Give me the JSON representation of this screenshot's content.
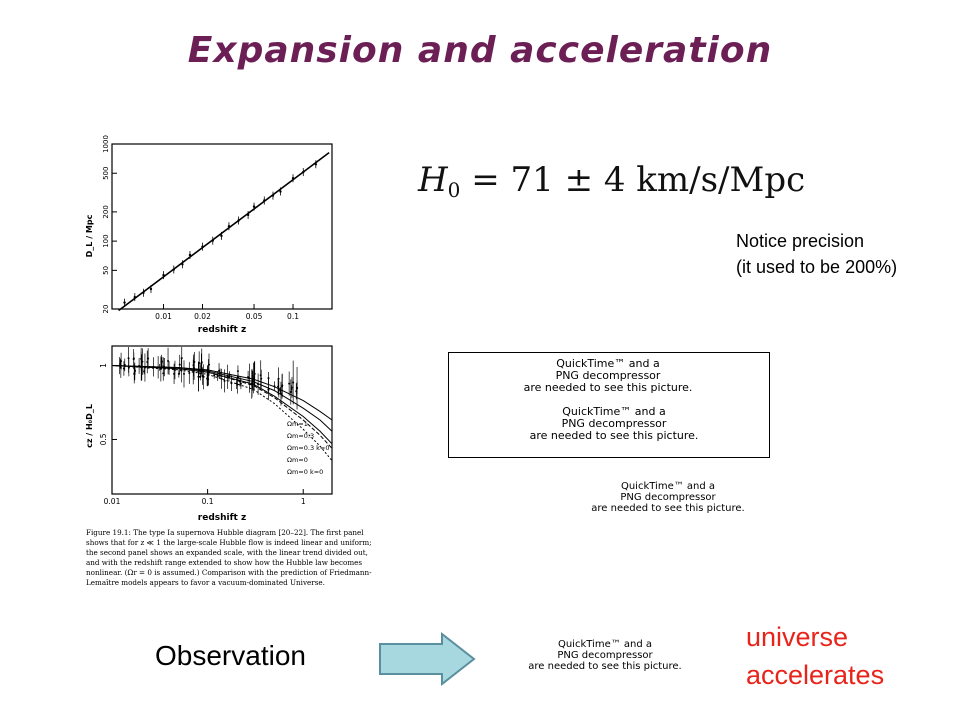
{
  "slide": {
    "title": "Expansion and acceleration",
    "formula": {
      "symbol": "H",
      "subscript": "0",
      "rest": " = 71 ± 4 km/s/Mpc"
    },
    "notice": [
      "Notice precision",
      "(it used to be 200%)"
    ],
    "observation_label": "Observation",
    "conclusion": [
      "universe",
      "accelerates"
    ],
    "quicktime_placeholder": [
      "QuickTime™ and a",
      "PNG decompressor",
      "are needed to see this picture."
    ]
  },
  "figure": {
    "caption": "Figure 19.1: The type Ia supernova Hubble diagram [20–22]. The first panel shows that for z ≪ 1 the large-scale Hubble flow is indeed linear and uniform; the second panel shows an expanded scale, with the linear trend divided out, and with the redshift range extended to show how the Hubble law becomes nonlinear. (Ωr = 0 is assumed.) Comparison with the prediction of Friedmann-Lemaître models appears to favor a vacuum-dominated Universe.",
    "top_panel": {
      "ylabel": "D_L / Mpc",
      "xlabel": "redshift z",
      "yticks": [
        "20",
        "50",
        "100",
        "200",
        "500",
        "1000"
      ],
      "xticks": [
        "0.01",
        "0.02",
        "0.05",
        "0.1"
      ]
    },
    "bottom_panel": {
      "ylabel": "cz / H₀D_L",
      "xlabel": "redshift z",
      "yticks": [
        "0.5",
        "1"
      ],
      "xticks": [
        "0.01",
        "0.1",
        "1"
      ],
      "legend": [
        "Ωm=1",
        "Ωm=0.3",
        "Ωm=0.3 k=0",
        "Ωm=0",
        "Ωm=0 k=0"
      ]
    }
  },
  "chart_data": [
    {
      "type": "scatter",
      "title": "",
      "xlabel": "redshift z",
      "ylabel": "D_L / Mpc",
      "x_scale": "log",
      "y_scale": "log",
      "xlim": [
        0.004,
        0.2
      ],
      "ylim": [
        20,
        1000
      ],
      "trend": "linear Hubble law through data",
      "x": [
        0.005,
        0.006,
        0.007,
        0.008,
        0.01,
        0.012,
        0.014,
        0.016,
        0.02,
        0.024,
        0.028,
        0.032,
        0.038,
        0.045,
        0.05,
        0.06,
        0.07,
        0.08,
        0.1,
        0.12,
        0.15
      ],
      "y": [
        22,
        26,
        30,
        34,
        43,
        51,
        60,
        68,
        86,
        103,
        120,
        137,
        163,
        193,
        214,
        257,
        300,
        343,
        428,
        514,
        643
      ]
    },
    {
      "type": "line",
      "title": "",
      "xlabel": "redshift z",
      "ylabel": "cz / H₀D_L",
      "x_scale": "log",
      "y_scale": "log",
      "xlim": [
        0.01,
        2
      ],
      "ylim": [
        0.3,
        1.2
      ],
      "x": [
        0.01,
        0.05,
        0.1,
        0.3,
        0.5,
        1,
        1.5,
        2
      ],
      "series": [
        {
          "name": "Ωm=1",
          "values": [
            1.0,
            0.98,
            0.96,
            0.88,
            0.82,
            0.72,
            0.65,
            0.6
          ]
        },
        {
          "name": "Ωm=0.3",
          "values": [
            1.0,
            0.98,
            0.95,
            0.86,
            0.79,
            0.67,
            0.6,
            0.54
          ]
        },
        {
          "name": "Ωm=0.3 k=0",
          "values": [
            1.0,
            0.97,
            0.94,
            0.84,
            0.75,
            0.62,
            0.54,
            0.48
          ]
        },
        {
          "name": "Ωm=0",
          "values": [
            1.0,
            0.97,
            0.94,
            0.83,
            0.74,
            0.6,
            0.52,
            0.46
          ]
        },
        {
          "name": "Ωm=0 k=0",
          "values": [
            1.0,
            0.96,
            0.92,
            0.8,
            0.7,
            0.55,
            0.47,
            0.41
          ]
        }
      ]
    }
  ]
}
